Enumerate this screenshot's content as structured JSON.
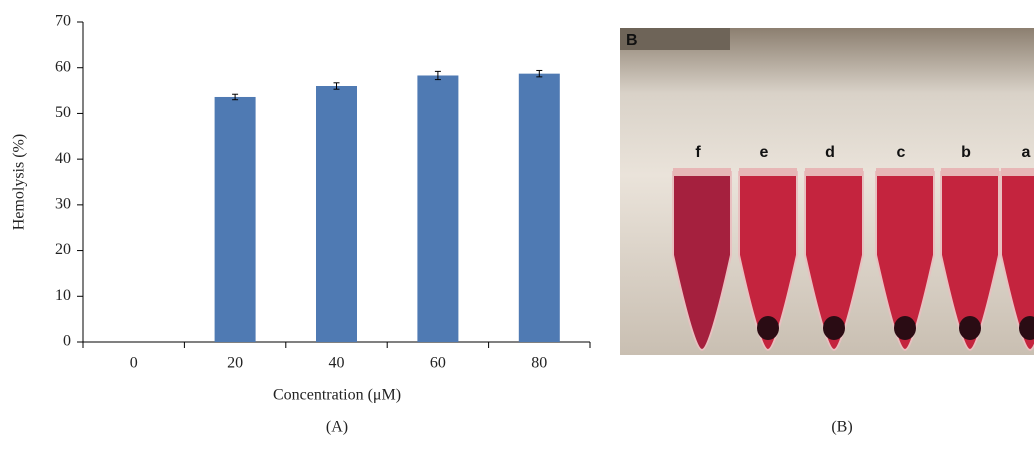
{
  "chart_data": {
    "type": "bar",
    "x_label": "Concentration (μM)",
    "y_label": "Hemolysis (%)",
    "categories": [
      "0",
      "20",
      "40",
      "60",
      "80"
    ],
    "values": [
      0,
      53.6,
      56,
      58.3,
      58.7
    ],
    "errors": [
      0,
      0.6,
      0.7,
      0.9,
      0.7
    ],
    "color": "#4f7ab3",
    "ylim": [
      0,
      70
    ],
    "yticks": [
      0,
      10,
      20,
      30,
      40,
      50,
      60,
      70
    ],
    "grid": false
  },
  "captions": [
    "(A)",
    "(B)"
  ],
  "panel_b": {
    "label": "B",
    "tube_labels": [
      "f",
      "e",
      "d",
      "c",
      "b",
      "a"
    ]
  }
}
